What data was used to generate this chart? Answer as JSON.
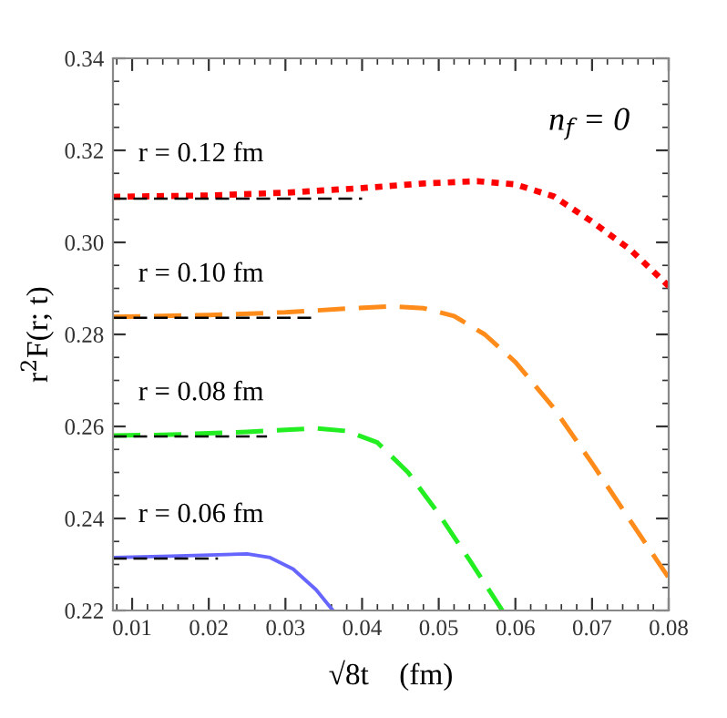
{
  "chart_data": {
    "type": "line",
    "xlabel": "√8t    (fm)",
    "ylabel": "r$^{2}$F(r; t)",
    "xlim": [
      0.0075,
      0.08
    ],
    "ylim": [
      0.22,
      0.34
    ],
    "xticks": [
      0.01,
      0.02,
      0.03,
      0.04,
      0.05,
      0.06,
      0.07,
      0.08
    ],
    "yticks": [
      0.22,
      0.24,
      0.26,
      0.28,
      {
        "value": 0.3,
        "label": "0.30"
      },
      0.32,
      0.34
    ],
    "grid": false,
    "legend": false,
    "annotations": [
      "n$_{f}$ = 0",
      "r = 0.12 fm",
      "r = 0.10 fm",
      "r = 0.08 fm",
      "r = 0.06 fm"
    ],
    "series": [
      {
        "color": "#ff0000",
        "line_style": "dotted",
        "x": [
          0.0075,
          0.02,
          0.03,
          0.04,
          0.048,
          0.055,
          0.06,
          0.065,
          0.07,
          0.075,
          0.08
        ],
        "values": [
          0.3099,
          0.3102,
          0.3108,
          0.3118,
          0.3128,
          0.3133,
          0.3126,
          0.31,
          0.3045,
          0.2984,
          0.2905
        ]
      },
      {
        "color": "#ff8c1a",
        "line_style": "dashed",
        "x": [
          0.0075,
          0.02,
          0.03,
          0.038,
          0.044,
          0.048,
          0.052,
          0.056,
          0.06,
          0.065,
          0.07,
          0.075,
          0.08
        ],
        "values": [
          0.2838,
          0.2842,
          0.2848,
          0.2856,
          0.2861,
          0.2857,
          0.284,
          0.28,
          0.274,
          0.264,
          0.252,
          0.2395,
          0.2271
        ]
      },
      {
        "color": "#22ee22",
        "line_style": "dashed",
        "x": [
          0.0075,
          0.015,
          0.025,
          0.034,
          0.038,
          0.042,
          0.046,
          0.05,
          0.054,
          0.0583
        ],
        "values": [
          0.258,
          0.2582,
          0.2588,
          0.2596,
          0.259,
          0.2565,
          0.25,
          0.241,
          0.231,
          0.22
        ]
      },
      {
        "color": "#6666ff",
        "line_style": "solid",
        "x": [
          0.0075,
          0.015,
          0.025,
          0.028,
          0.031,
          0.034,
          0.0362
        ],
        "values": [
          0.2315,
          0.2318,
          0.2323,
          0.2315,
          0.229,
          0.2245,
          0.22
        ]
      },
      {
        "color": "#000000",
        "line_style": "dashed",
        "x": [
          0.0075,
          0.04
        ],
        "values": [
          0.3095,
          0.3095
        ]
      },
      {
        "color": "#000000",
        "line_style": "dashed",
        "x": [
          0.0075,
          0.0338
        ],
        "values": [
          0.2836,
          0.2836
        ]
      },
      {
        "color": "#000000",
        "line_style": "dashed",
        "x": [
          0.0075,
          0.0276
        ],
        "values": [
          0.2578,
          0.2578
        ]
      },
      {
        "color": "#000000",
        "line_style": "dashed",
        "x": [
          0.0075,
          0.0212
        ],
        "values": [
          0.2313,
          0.2313
        ]
      }
    ]
  }
}
